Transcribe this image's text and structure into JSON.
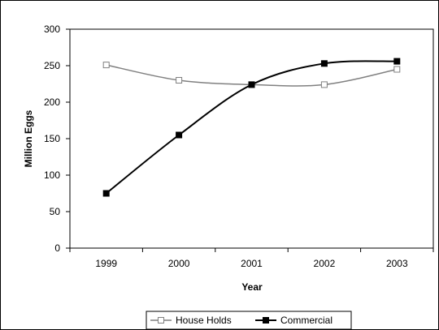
{
  "chart_data": {
    "type": "line",
    "title": "",
    "xlabel": "Year",
    "ylabel": "Million Eggs",
    "categories": [
      "1999",
      "2000",
      "2001",
      "2002",
      "2003"
    ],
    "ylim": [
      0,
      300
    ],
    "yticks": [
      0,
      50,
      100,
      150,
      200,
      250,
      300
    ],
    "grid": false,
    "legend_position": "bottom",
    "series": [
      {
        "name": "House Holds",
        "values": [
          251,
          230,
          224,
          224,
          245
        ],
        "color": "#808080",
        "marker": "hollow-square"
      },
      {
        "name": "Commercial",
        "values": [
          75,
          155,
          224,
          253,
          256
        ],
        "color": "#000000",
        "marker": "filled-square"
      }
    ]
  }
}
